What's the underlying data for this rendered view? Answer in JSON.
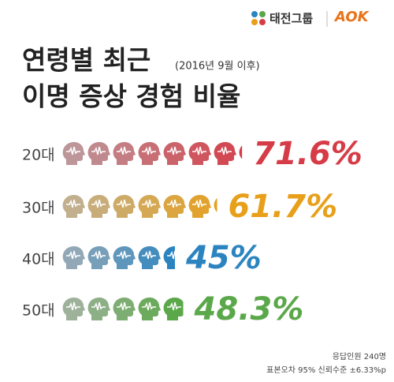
{
  "logo": {
    "group": "태전그룹",
    "brand": "AOK"
  },
  "chart_data": {
    "type": "pictograph",
    "title": "연령별 최근",
    "subtitle": "(2016년 9월 이후)",
    "title_line2": "이명 증상 경험 비율",
    "categories": [
      "20대",
      "30대",
      "40대",
      "50대"
    ],
    "values": [
      71.6,
      61.7,
      45,
      48.3
    ],
    "value_labels": [
      "71.6%",
      "61.7%",
      "45%",
      "48.3%"
    ],
    "colors": [
      "#d63c48",
      "#e8a01a",
      "#2b84c0",
      "#5ba84a"
    ],
    "notes": [
      "응답인원 240명",
      "표본오차 95% 신뢰수준 ±6.33%p"
    ]
  }
}
